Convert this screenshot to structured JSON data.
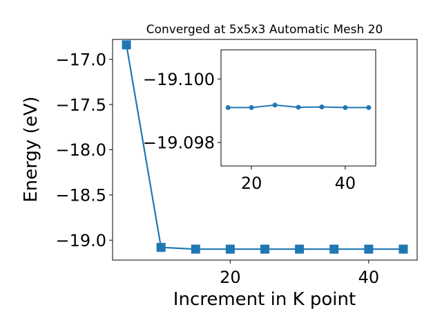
{
  "chart_data": [
    {
      "type": "line",
      "title": "Converged at 5x5x3 Automatic Mesh 20",
      "xlabel": "Increment in K point",
      "ylabel": "Energy (eV)",
      "xlim": [
        3.0,
        47.0
      ],
      "ylim": [
        -19.22,
        -16.78
      ],
      "xticks": [
        20,
        40
      ],
      "yticks": [
        -17.0,
        -17.5,
        -18.0,
        -18.5,
        -19.0
      ],
      "ytick_labels": [
        "−17.0",
        "−17.5",
        "−18.0",
        "−18.5",
        "−19.0"
      ],
      "xtick_labels": [
        "20",
        "40"
      ],
      "marker": "square",
      "grid": false,
      "x": [
        5,
        10,
        15,
        20,
        25,
        30,
        35,
        40,
        45
      ],
      "y": [
        -16.84,
        -19.08,
        -19.099,
        -19.099,
        -19.099,
        -19.099,
        -19.099,
        -19.099,
        -19.099
      ]
    },
    {
      "type": "line",
      "title": "",
      "xlabel": "",
      "ylabel": "",
      "xlim": [
        13.5,
        46.5
      ],
      "ylim": [
        -19.09726,
        -19.10092
      ],
      "xticks": [
        20,
        40
      ],
      "xtick_labels": [
        "20",
        "40"
      ],
      "yticks": [
        -19.1,
        -19.098
      ],
      "ytick_labels": [
        "−19.100",
        "−19.098"
      ],
      "marker": "circle",
      "grid": false,
      "x": [
        15,
        20,
        25,
        30,
        35,
        40,
        45
      ],
      "y": [
        -19.0991,
        -19.0991,
        -19.09918,
        -19.09911,
        -19.09912,
        -19.0991,
        -19.0991
      ]
    }
  ],
  "colors": {
    "series": "#1f77b4",
    "axes": "#000000",
    "background": "#ffffff"
  }
}
